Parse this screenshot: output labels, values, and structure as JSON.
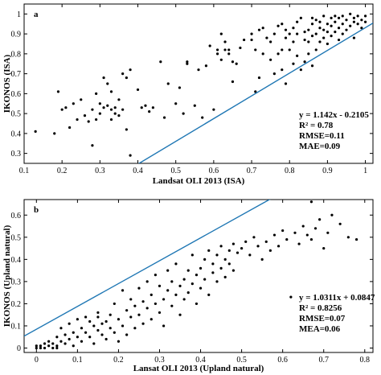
{
  "chart_data": [
    {
      "type": "scatter",
      "panel_label": "a",
      "xlabel": "Landsat OLI 2013 (ISA)",
      "ylabel": "IKONOS (ISA)",
      "xlim": [
        0.1,
        1.02
      ],
      "ylim": [
        0.25,
        1.05
      ],
      "xticks": [
        0.1,
        0.2,
        0.3,
        0.4,
        0.5,
        0.6,
        0.7,
        0.8,
        0.9,
        1
      ],
      "xtick_labels": [
        "0.1",
        "0.2",
        "0.3",
        "0.4",
        "0.5",
        "0.6",
        "0.7",
        "0.8",
        "0.9",
        "1"
      ],
      "yticks": [
        0.3,
        0.4,
        0.5,
        0.6,
        0.7,
        0.8,
        0.9,
        1
      ],
      "ytick_labels": [
        "0.3",
        "0.4",
        "0.5",
        "0.6",
        "0.7",
        "0.8",
        "0.9",
        "1"
      ],
      "fit_line": {
        "slope": 1.142,
        "intercept": -0.2105,
        "color": "#1f77b4"
      },
      "stats": [
        "y = 1.142x - 0.2105",
        "R² = 0.78",
        "RMSE=0.11",
        "MAE=0.09"
      ],
      "point_color": "#000000",
      "points": [
        [
          0.13,
          0.41
        ],
        [
          0.18,
          0.4
        ],
        [
          0.19,
          0.61
        ],
        [
          0.2,
          0.52
        ],
        [
          0.21,
          0.53
        ],
        [
          0.22,
          0.43
        ],
        [
          0.23,
          0.55
        ],
        [
          0.24,
          0.47
        ],
        [
          0.25,
          0.57
        ],
        [
          0.26,
          0.49
        ],
        [
          0.27,
          0.46
        ],
        [
          0.28,
          0.52
        ],
        [
          0.28,
          0.34
        ],
        [
          0.29,
          0.47
        ],
        [
          0.29,
          0.6
        ],
        [
          0.3,
          0.55
        ],
        [
          0.3,
          0.5
        ],
        [
          0.31,
          0.68
        ],
        [
          0.31,
          0.53
        ],
        [
          0.32,
          0.54
        ],
        [
          0.32,
          0.65
        ],
        [
          0.33,
          0.52
        ],
        [
          0.33,
          0.61
        ],
        [
          0.33,
          0.47
        ],
        [
          0.34,
          0.53
        ],
        [
          0.34,
          0.5
        ],
        [
          0.35,
          0.49
        ],
        [
          0.35,
          0.57
        ],
        [
          0.36,
          0.7
        ],
        [
          0.36,
          0.52
        ],
        [
          0.37,
          0.42
        ],
        [
          0.37,
          0.68
        ],
        [
          0.38,
          0.72
        ],
        [
          0.38,
          0.29
        ],
        [
          0.4,
          0.62
        ],
        [
          0.41,
          0.53
        ],
        [
          0.42,
          0.54
        ],
        [
          0.43,
          0.51
        ],
        [
          0.44,
          0.53
        ],
        [
          0.46,
          0.76
        ],
        [
          0.47,
          0.48
        ],
        [
          0.48,
          0.65
        ],
        [
          0.5,
          0.55
        ],
        [
          0.51,
          0.63
        ],
        [
          0.52,
          0.5
        ],
        [
          0.53,
          0.75
        ],
        [
          0.53,
          0.76
        ],
        [
          0.55,
          0.54
        ],
        [
          0.56,
          0.72
        ],
        [
          0.57,
          0.48
        ],
        [
          0.58,
          0.74
        ],
        [
          0.59,
          0.84
        ],
        [
          0.6,
          0.52
        ],
        [
          0.61,
          0.8
        ],
        [
          0.61,
          0.82
        ],
        [
          0.62,
          0.77
        ],
        [
          0.62,
          0.9
        ],
        [
          0.63,
          0.86
        ],
        [
          0.63,
          0.82
        ],
        [
          0.64,
          0.8
        ],
        [
          0.64,
          0.82
        ],
        [
          0.65,
          0.66
        ],
        [
          0.65,
          0.76
        ],
        [
          0.66,
          0.75
        ],
        [
          0.67,
          0.83
        ],
        [
          0.68,
          0.87
        ],
        [
          0.7,
          0.87
        ],
        [
          0.71,
          0.61
        ],
        [
          0.71,
          0.82
        ],
        [
          0.72,
          0.92
        ],
        [
          0.72,
          0.68
        ],
        [
          0.73,
          0.8
        ],
        [
          0.73,
          0.93
        ],
        [
          0.74,
          0.88
        ],
        [
          0.75,
          0.77
        ],
        [
          0.75,
          0.86
        ],
        [
          0.76,
          0.9
        ],
        [
          0.76,
          0.7
        ],
        [
          0.77,
          0.94
        ],
        [
          0.77,
          0.8
        ],
        [
          0.78,
          0.82
        ],
        [
          0.78,
          0.95
        ],
        [
          0.78,
          0.72
        ],
        [
          0.79,
          0.92
        ],
        [
          0.79,
          0.88
        ],
        [
          0.79,
          0.65
        ],
        [
          0.8,
          0.9
        ],
        [
          0.8,
          0.82
        ],
        [
          0.81,
          0.93
        ],
        [
          0.81,
          0.86
        ],
        [
          0.81,
          0.75
        ],
        [
          0.82,
          0.96
        ],
        [
          0.82,
          0.9
        ],
        [
          0.82,
          0.79
        ],
        [
          0.83,
          0.72
        ],
        [
          0.83,
          0.98
        ],
        [
          0.84,
          0.91
        ],
        [
          0.84,
          0.87
        ],
        [
          0.84,
          0.76
        ],
        [
          0.85,
          0.92
        ],
        [
          0.85,
          0.86
        ],
        [
          0.85,
          0.8
        ],
        [
          0.86,
          0.95
        ],
        [
          0.86,
          0.89
        ],
        [
          0.86,
          0.74
        ],
        [
          0.87,
          0.97
        ],
        [
          0.87,
          0.9
        ],
        [
          0.87,
          0.82
        ],
        [
          0.88,
          0.96
        ],
        [
          0.88,
          0.93
        ],
        [
          0.88,
          0.86
        ],
        [
          0.89,
          0.99
        ],
        [
          0.89,
          0.92
        ],
        [
          0.89,
          0.88
        ],
        [
          0.9,
          0.95
        ],
        [
          0.9,
          0.91
        ],
        [
          0.9,
          0.85
        ],
        [
          0.91,
          0.98
        ],
        [
          0.91,
          0.94
        ],
        [
          0.91,
          0.89
        ],
        [
          0.92,
          0.99
        ],
        [
          0.92,
          0.96
        ],
        [
          0.92,
          0.91
        ],
        [
          0.93,
          0.98
        ],
        [
          0.93,
          0.93
        ],
        [
          0.93,
          0.87
        ],
        [
          0.94,
          0.99
        ],
        [
          0.94,
          0.95
        ],
        [
          0.94,
          0.9
        ],
        [
          0.95,
          0.97
        ],
        [
          0.95,
          0.92
        ],
        [
          0.96,
          1.0
        ],
        [
          0.96,
          0.94
        ],
        [
          0.97,
          0.98
        ],
        [
          0.97,
          0.96
        ],
        [
          0.97,
          0.88
        ],
        [
          0.98,
          0.99
        ],
        [
          0.98,
          0.95
        ],
        [
          0.99,
          0.97
        ],
        [
          0.99,
          0.93
        ],
        [
          1.0,
          0.99
        ],
        [
          1.0,
          0.96
        ],
        [
          0.86,
          0.98
        ],
        [
          0.7,
          0.9
        ]
      ]
    },
    {
      "type": "scatter",
      "panel_label": "b",
      "xlabel": "Lansat OLI 2013 (Upland natural)",
      "ylabel": "IKONOS (Upland natural)",
      "xlim": [
        -0.03,
        0.82
      ],
      "ylim": [
        -0.02,
        0.67
      ],
      "xticks": [
        0,
        0.1,
        0.2,
        0.3,
        0.4,
        0.5,
        0.6,
        0.7,
        0.8
      ],
      "xtick_labels": [
        "0",
        "0.1",
        "0.2",
        "0.3",
        "0.4",
        "0.5",
        "0.6",
        "0.7",
        "0.8"
      ],
      "yticks": [
        0,
        0.1,
        0.2,
        0.3,
        0.4,
        0.5,
        0.6
      ],
      "ytick_labels": [
        "0",
        "0.1",
        "0.2",
        "0.3",
        "0.4",
        "0.5",
        "0.6"
      ],
      "fit_line": {
        "slope": 1.0311,
        "intercept": 0.0847,
        "color": "#1f77b4"
      },
      "stats": [
        "y = 1.0311x + 0.0847",
        "R² = 0.8256",
        "RMSE=0.07",
        "MEA=0.06"
      ],
      "point_color": "#000000",
      "points": [
        [
          0.0,
          0.0
        ],
        [
          0.0,
          0.01
        ],
        [
          0.01,
          0.0
        ],
        [
          0.01,
          0.01
        ],
        [
          0.02,
          0.0
        ],
        [
          0.02,
          0.02
        ],
        [
          0.03,
          0.01
        ],
        [
          0.03,
          0.03
        ],
        [
          0.04,
          0.0
        ],
        [
          0.04,
          0.02
        ],
        [
          0.05,
          0.05
        ],
        [
          0.05,
          0.01
        ],
        [
          0.06,
          0.03
        ],
        [
          0.06,
          0.09
        ],
        [
          0.07,
          0.02
        ],
        [
          0.07,
          0.06
        ],
        [
          0.08,
          0.04
        ],
        [
          0.08,
          0.11
        ],
        [
          0.09,
          0.07
        ],
        [
          0.09,
          0.01
        ],
        [
          0.1,
          0.05
        ],
        [
          0.1,
          0.13
        ],
        [
          0.11,
          0.09
        ],
        [
          0.11,
          0.03
        ],
        [
          0.12,
          0.07
        ],
        [
          0.12,
          0.14
        ],
        [
          0.13,
          0.12
        ],
        [
          0.13,
          0.05
        ],
        [
          0.14,
          0.1
        ],
        [
          0.14,
          0.02
        ],
        [
          0.15,
          0.08
        ],
        [
          0.15,
          0.16
        ],
        [
          0.16,
          0.11
        ],
        [
          0.16,
          0.06
        ],
        [
          0.17,
          0.04
        ],
        [
          0.17,
          0.12
        ],
        [
          0.18,
          0.15
        ],
        [
          0.18,
          0.09
        ],
        [
          0.19,
          0.2
        ],
        [
          0.19,
          0.07
        ],
        [
          0.2,
          0.13
        ],
        [
          0.2,
          0.03
        ],
        [
          0.21,
          0.1
        ],
        [
          0.21,
          0.26
        ],
        [
          0.22,
          0.17
        ],
        [
          0.22,
          0.06
        ],
        [
          0.23,
          0.14
        ],
        [
          0.23,
          0.22
        ],
        [
          0.24,
          0.09
        ],
        [
          0.24,
          0.19
        ],
        [
          0.25,
          0.15
        ],
        [
          0.25,
          0.27
        ],
        [
          0.26,
          0.11
        ],
        [
          0.26,
          0.21
        ],
        [
          0.27,
          0.18
        ],
        [
          0.27,
          0.3
        ],
        [
          0.28,
          0.13
        ],
        [
          0.28,
          0.24
        ],
        [
          0.29,
          0.2
        ],
        [
          0.29,
          0.33
        ],
        [
          0.3,
          0.16
        ],
        [
          0.3,
          0.28
        ],
        [
          0.31,
          0.22
        ],
        [
          0.31,
          0.1
        ],
        [
          0.32,
          0.26
        ],
        [
          0.32,
          0.35
        ],
        [
          0.33,
          0.19
        ],
        [
          0.33,
          0.3
        ],
        [
          0.34,
          0.24
        ],
        [
          0.34,
          0.38
        ],
        [
          0.35,
          0.28
        ],
        [
          0.35,
          0.15
        ],
        [
          0.36,
          0.31
        ],
        [
          0.36,
          0.22
        ],
        [
          0.37,
          0.35
        ],
        [
          0.37,
          0.25
        ],
        [
          0.38,
          0.29
        ],
        [
          0.38,
          0.42
        ],
        [
          0.39,
          0.33
        ],
        [
          0.39,
          0.2
        ],
        [
          0.4,
          0.36
        ],
        [
          0.4,
          0.27
        ],
        [
          0.41,
          0.4
        ],
        [
          0.41,
          0.31
        ],
        [
          0.42,
          0.44
        ],
        [
          0.42,
          0.24
        ],
        [
          0.43,
          0.38
        ],
        [
          0.43,
          0.34
        ],
        [
          0.44,
          0.42
        ],
        [
          0.44,
          0.3
        ],
        [
          0.45,
          0.46
        ],
        [
          0.45,
          0.36
        ],
        [
          0.46,
          0.4
        ],
        [
          0.46,
          0.32
        ],
        [
          0.47,
          0.44
        ],
        [
          0.47,
          0.38
        ],
        [
          0.48,
          0.47
        ],
        [
          0.48,
          0.35
        ],
        [
          0.49,
          0.43
        ],
        [
          0.5,
          0.45
        ],
        [
          0.51,
          0.48
        ],
        [
          0.52,
          0.42
        ],
        [
          0.53,
          0.5
        ],
        [
          0.54,
          0.46
        ],
        [
          0.55,
          0.4
        ],
        [
          0.56,
          0.48
        ],
        [
          0.57,
          0.44
        ],
        [
          0.58,
          0.51
        ],
        [
          0.59,
          0.46
        ],
        [
          0.6,
          0.53
        ],
        [
          0.61,
          0.49
        ],
        [
          0.62,
          0.23
        ],
        [
          0.63,
          0.52
        ],
        [
          0.64,
          0.47
        ],
        [
          0.65,
          0.55
        ],
        [
          0.66,
          0.51
        ],
        [
          0.67,
          0.66
        ],
        [
          0.67,
          0.49
        ],
        [
          0.68,
          0.54
        ],
        [
          0.69,
          0.58
        ],
        [
          0.7,
          0.45
        ],
        [
          0.71,
          0.52
        ],
        [
          0.72,
          0.6
        ],
        [
          0.74,
          0.56
        ],
        [
          0.76,
          0.5
        ],
        [
          0.78,
          0.49
        ],
        [
          0.15,
          0.14
        ],
        [
          0.05,
          0.0
        ]
      ]
    }
  ]
}
